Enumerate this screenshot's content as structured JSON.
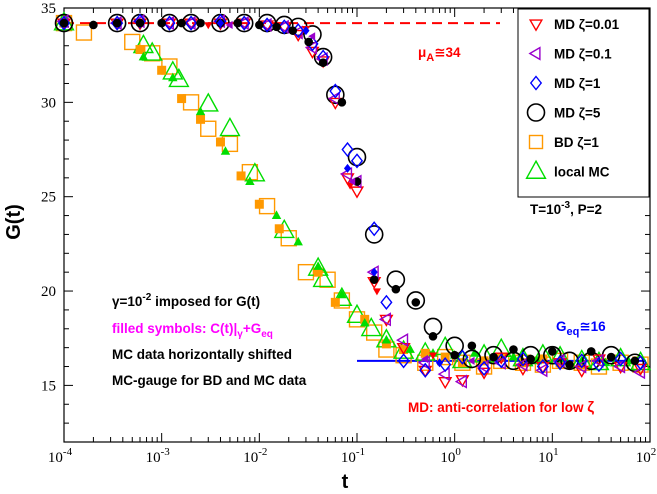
{
  "chart_data": {
    "type": "scatter",
    "title": "",
    "xlabel": "t",
    "ylabel": "G(t)",
    "x_scale": "log",
    "xlim": [
      0.0001,
      100
    ],
    "ylim": [
      12,
      35
    ],
    "x_ticks": [
      0.0001,
      0.001,
      0.01,
      0.1,
      1,
      10,
      100
    ],
    "x_tick_labels": [
      {
        "base": "10",
        "exp": "-4"
      },
      {
        "base": "10",
        "exp": "-3"
      },
      {
        "base": "10",
        "exp": "-2"
      },
      {
        "base": "10",
        "exp": "-1"
      },
      {
        "base": "10",
        "exp": "0"
      },
      {
        "base": "10",
        "exp": "1"
      },
      {
        "base": "10",
        "exp": "2"
      }
    ],
    "y_ticks": [
      15,
      20,
      25,
      30,
      35
    ],
    "y_tick_labels": [
      "15",
      "20",
      "25",
      "30",
      "35"
    ],
    "grid": false,
    "legend_position": "top-right",
    "reference_lines": [
      {
        "name": "mu_A",
        "y": 34.2,
        "x_range": [
          0.0001,
          100
        ],
        "style": "dashed",
        "color": "#ff0000"
      },
      {
        "name": "G_eq",
        "y": 16.3,
        "x_range": [
          0.1,
          100
        ],
        "style": "solid",
        "color": "#0000ff"
      }
    ],
    "series": [
      {
        "name": "MD ζ=0.01",
        "marker": "triangle-down",
        "color": "#ff0000",
        "x": [
          0.0001,
          0.00035,
          0.0006,
          0.0012,
          0.002,
          0.004,
          0.007,
          0.012,
          0.018,
          0.025,
          0.035,
          0.045,
          0.06,
          0.08,
          0.1,
          0.15,
          0.2,
          0.3,
          0.5,
          0.8,
          1.2,
          2,
          3,
          5,
          8,
          12,
          20,
          30,
          50,
          80
        ],
        "y": [
          34.2,
          34.2,
          34.2,
          34.2,
          34.2,
          34.2,
          34.2,
          34.1,
          34,
          33.6,
          32.7,
          32.2,
          30,
          26,
          25.3,
          20.5,
          18.5,
          17,
          15.8,
          15.2,
          15.3,
          15.7,
          16.5,
          15.9,
          16,
          16.2,
          15.8,
          16.4,
          16,
          15.9
        ]
      },
      {
        "name": "MD ζ=0.1",
        "marker": "triangle-left",
        "color": "#9900cc",
        "x": [
          0.0001,
          0.00035,
          0.0006,
          0.0012,
          0.002,
          0.004,
          0.007,
          0.012,
          0.018,
          0.025,
          0.035,
          0.045,
          0.06,
          0.08,
          0.1,
          0.15,
          0.2,
          0.3,
          0.5,
          0.8,
          1.2,
          2,
          3,
          5,
          8,
          12,
          20,
          30,
          50,
          80
        ],
        "y": [
          34.3,
          34.2,
          34.3,
          34.2,
          34.2,
          34.3,
          34.2,
          34.1,
          34,
          33.7,
          32.9,
          32.3,
          30.2,
          26.2,
          25.8,
          21,
          18.5,
          17.4,
          16.2,
          15.6,
          15.2,
          16,
          16.2,
          16.1,
          15.8,
          16.3,
          16,
          16.3,
          16,
          15.7
        ]
      },
      {
        "name": "MD ζ=1",
        "marker": "diamond",
        "color": "#0000ff",
        "x": [
          0.0001,
          0.00035,
          0.0006,
          0.0012,
          0.002,
          0.004,
          0.007,
          0.012,
          0.018,
          0.025,
          0.035,
          0.045,
          0.06,
          0.08,
          0.1,
          0.15,
          0.2,
          0.3,
          0.5,
          0.8,
          1.2,
          2,
          3,
          5,
          8,
          12,
          20,
          30,
          50,
          80
        ],
        "y": [
          34.2,
          34.2,
          34.3,
          34.2,
          34.2,
          34.3,
          34.2,
          34.1,
          34,
          33.8,
          33.1,
          32.4,
          30.6,
          27.5,
          26.9,
          23.3,
          19.4,
          16.3,
          15.8,
          16.1,
          16.5,
          15.9,
          16.3,
          16.4,
          16,
          16.2,
          16.3,
          16.1,
          16.4,
          16.2
        ]
      },
      {
        "name": "MD ζ=5",
        "marker": "circle-open",
        "color": "#000000",
        "x": [
          0.0001,
          0.00035,
          0.0006,
          0.0012,
          0.002,
          0.004,
          0.007,
          0.012,
          0.018,
          0.025,
          0.035,
          0.045,
          0.06,
          0.1,
          0.15,
          0.25,
          0.4,
          0.6,
          1,
          1.5,
          2.5,
          4,
          6,
          10,
          15,
          25,
          40,
          70
        ],
        "y": [
          34.2,
          34.2,
          34.2,
          34.2,
          34.2,
          34.2,
          34.2,
          34.2,
          34.1,
          34,
          33.6,
          32.4,
          30.4,
          27.1,
          23,
          20.6,
          19.5,
          18.1,
          17.1,
          16.4,
          16.6,
          16.3,
          16.6,
          16.6,
          16.3,
          16.3,
          16.6,
          16.2
        ]
      },
      {
        "name": "BD ζ=1",
        "marker": "square",
        "color": "#ff9900",
        "x": [
          0.0001,
          0.00016,
          0.0005,
          0.0008,
          0.0012,
          0.002,
          0.003,
          0.005,
          0.008,
          0.012,
          0.02,
          0.03,
          0.05,
          0.07,
          0.1,
          0.15,
          0.2,
          0.3,
          0.5,
          0.8,
          1.2,
          2,
          3,
          5,
          8,
          12,
          20,
          30,
          50,
          80
        ],
        "y": [
          34.2,
          33.7,
          33.2,
          32.6,
          31.9,
          30,
          28.6,
          27.8,
          26.3,
          24.5,
          22.8,
          21,
          20.6,
          19.5,
          18.5,
          17.8,
          16.9,
          16.6,
          16.2,
          16.5,
          16.2,
          16,
          16.3,
          16.2,
          16.1,
          16.3,
          16.2,
          16,
          16.2,
          16.1
        ]
      },
      {
        "name": "local MC",
        "marker": "triangle-up",
        "color": "#00dd00",
        "x": [
          0.0001,
          0.00065,
          0.0008,
          0.0013,
          0.0015,
          0.003,
          0.005,
          0.009,
          0.018,
          0.04,
          0.045,
          0.07,
          0.1,
          0.14,
          0.2,
          0.3,
          0.5,
          0.8,
          1.2,
          2,
          3,
          5,
          8,
          12,
          20,
          30,
          50,
          80
        ],
        "y": [
          34.2,
          33,
          32.6,
          31.6,
          31.2,
          29.9,
          28.6,
          26.2,
          23.2,
          21.2,
          20.6,
          19.6,
          18.7,
          18,
          17.4,
          16.8,
          16.7,
          17,
          16.3,
          16.6,
          16.9,
          16.4,
          16.6,
          16.5,
          16.3,
          16.2,
          16.4,
          16.2
        ]
      },
      {
        "name": "MD ζ=5 filled",
        "marker": "circle-filled",
        "color": "#000000",
        "legend": false,
        "x": [
          0.0001,
          0.0002,
          0.00035,
          0.0006,
          0.001,
          0.0016,
          0.0025,
          0.004,
          0.006,
          0.01,
          0.015,
          0.022,
          0.032,
          0.045,
          0.07,
          0.1,
          0.15,
          0.25,
          0.4,
          0.6,
          1,
          1.5,
          2.5,
          4,
          6,
          10,
          15,
          25,
          40,
          70
        ],
        "y": [
          34.2,
          34.1,
          34.2,
          34.2,
          34.2,
          34.2,
          34.2,
          34.2,
          34.2,
          34.1,
          34,
          33.8,
          33.2,
          32.1,
          30,
          25.8,
          20.6,
          20.1,
          19.4,
          17.6,
          16.6,
          17.1,
          16.5,
          16.9,
          16.4,
          16.8,
          16.1,
          16.8,
          16.5,
          16.3
        ]
      },
      {
        "name": "BD ζ=1 filled",
        "marker": "square-filled",
        "color": "#ff9900",
        "legend": false,
        "x": [
          0.0001,
          0.0006,
          0.001,
          0.0016,
          0.0025,
          0.004,
          0.0065,
          0.01,
          0.016,
          0.04,
          0.06,
          0.12,
          0.2,
          0.3,
          0.5,
          0.8,
          1.2,
          2,
          3,
          5,
          8,
          12,
          20
        ],
        "y": [
          34.2,
          32.8,
          31.7,
          30.2,
          29.1,
          27.9,
          26.1,
          24.6,
          23.3,
          21,
          19.4,
          18.5,
          17.2,
          16.9,
          16.7,
          16.5,
          16.2,
          16.3,
          16.5,
          16.2,
          16.4,
          16.2,
          16.1
        ]
      },
      {
        "name": "local MC filled",
        "marker": "triangle-up-filled",
        "color": "#00dd00",
        "legend": false,
        "x": [
          0.0001,
          0.00065,
          0.0013,
          0.0025,
          0.0045,
          0.008,
          0.015,
          0.025,
          0.04,
          0.07,
          0.12,
          0.2,
          0.35,
          0.6,
          1,
          1.6,
          2.5,
          4,
          7,
          12,
          20,
          35,
          60
        ],
        "y": [
          34.2,
          32.4,
          31.3,
          29.5,
          27.4,
          25.8,
          24,
          22.6,
          21.3,
          19.8,
          18.3,
          17.4,
          16.9,
          16.7,
          16.6,
          16.7,
          16.5,
          16.5,
          16.3,
          16.4,
          16.3,
          16.2,
          16.3
        ]
      },
      {
        "name": "MD ζ=0.01 filled",
        "marker": "triangle-down-filled",
        "color": "#ff0000",
        "legend": false,
        "x": [
          0.003,
          0.03,
          0.085,
          0.16,
          0.6
        ],
        "y": [
          34.1,
          33.9,
          25.6,
          20,
          16.6
        ]
      },
      {
        "name": "MD ζ=0.1 filled",
        "marker": "triangle-left-filled",
        "color": "#9900cc",
        "legend": false,
        "x": [
          0.005,
          0.035,
          0.09,
          0.5,
          1.5
        ],
        "y": [
          34.1,
          33.5,
          25.8,
          16.4,
          16.3
        ]
      },
      {
        "name": "MD ζ=1 filled",
        "marker": "diamond-filled",
        "color": "#0000ff",
        "legend": false,
        "x": [
          0.004,
          0.03,
          0.08,
          0.15,
          0.7
        ],
        "y": [
          34.2,
          33.8,
          26.5,
          21,
          16.2
        ]
      }
    ],
    "annotations": [
      {
        "key": "mu_a",
        "text": "μA≅34",
        "color": "#ff0000"
      },
      {
        "key": "t_p",
        "text": "T=10-3, P=2",
        "color": "#000000"
      },
      {
        "key": "gamma",
        "text": "γ=10-2 imposed for G(t)",
        "color": "#000000"
      },
      {
        "key": "filled",
        "text": "filled symbols: C(t)|γ+Geq",
        "color": "#ff00ff"
      },
      {
        "key": "mc_shift",
        "text": "MC data horizontally shifted",
        "color": "#000000"
      },
      {
        "key": "mc_gauge",
        "text": "MC-gauge for BD and MC data",
        "color": "#000000"
      },
      {
        "key": "g_eq",
        "text": "Geq≅16",
        "color": "#0000ff"
      },
      {
        "key": "md_anti",
        "text": "MD: anti-correlation for low ζ",
        "color": "#ff0000"
      }
    ]
  },
  "text": {
    "xlabel": "t",
    "ylabel": "G(t)",
    "mu_a": {
      "base": "μ",
      "sub": "A",
      "rest": "≅34"
    },
    "t_p": {
      "pre": "T=10",
      "sup": "-3",
      "post": ", P=2"
    },
    "gamma": {
      "pre": "γ=10",
      "sup": "-2",
      "post": " imposed for G(t)"
    },
    "filled": {
      "pre": "filled symbols: C(t)|",
      "sub1": "γ",
      "mid": "+G",
      "sub2": "eq"
    },
    "mc_shift": "MC data horizontally shifted",
    "mc_gauge": "MC-gauge for BD and MC data",
    "g_eq": {
      "base": "G",
      "sub": "eq",
      "rest": "≅16"
    },
    "md_anti": {
      "pre": "MD: anti-correlation for low ",
      "zeta": "ζ"
    }
  }
}
